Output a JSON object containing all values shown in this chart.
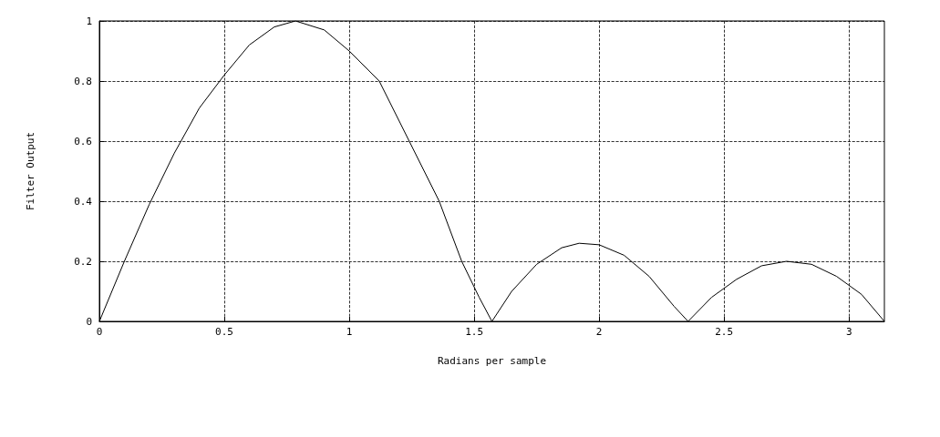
{
  "chart_data": {
    "type": "line",
    "xlabel": "Radians per sample",
    "ylabel": "Filter Output",
    "x": [
      0,
      0.1,
      0.2,
      0.3,
      0.4,
      0.5,
      0.6,
      0.7,
      0.785,
      0.9,
      1.0,
      1.12,
      1.24,
      1.36,
      1.45,
      1.52,
      1.571,
      1.65,
      1.75,
      1.85,
      1.92,
      2.0,
      2.1,
      2.2,
      2.3,
      2.356,
      2.45,
      2.55,
      2.65,
      2.75,
      2.85,
      2.95,
      3.05,
      3.1416
    ],
    "series": [
      {
        "color": "#000000",
        "values": [
          0,
          0.2,
          0.39,
          0.56,
          0.71,
          0.82,
          0.92,
          0.98,
          1.0,
          0.97,
          0.9,
          0.8,
          0.6,
          0.4,
          0.2,
          0.08,
          0,
          0.1,
          0.19,
          0.245,
          0.26,
          0.255,
          0.22,
          0.15,
          0.05,
          0,
          0.08,
          0.14,
          0.185,
          0.2,
          0.19,
          0.15,
          0.09,
          0
        ]
      }
    ],
    "xlim": [
      0,
      3.1416
    ],
    "xticks": [
      0,
      0.5,
      1,
      1.5,
      2,
      2.5,
      3
    ],
    "ylim": [
      0,
      1
    ],
    "yticks": [
      0,
      0.2,
      0.4,
      0.6,
      0.8,
      1
    ],
    "grid": true,
    "marker": "none",
    "line_style": "solid"
  }
}
